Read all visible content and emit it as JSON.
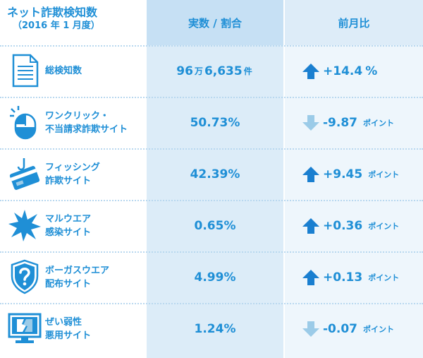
{
  "header": {
    "title": "ネット詐欺検知数",
    "subtitle": "（2016 年 1 月度）",
    "col_value": "実数 / 割合",
    "col_change": "前月比"
  },
  "colors": {
    "accent": "#1f8fd6",
    "arrow_up": "#1a7fd0",
    "arrow_down": "#9bcbe8"
  },
  "rows": [
    {
      "icon": "document-icon",
      "label_line1": "総検知数",
      "label_line2": "",
      "value_main": "96",
      "value_unit1": "万",
      "value_rest": "6,635",
      "value_unit2": "件",
      "direction": "up",
      "change": "+14.4",
      "change_unit": "%"
    },
    {
      "icon": "mouse-click-icon",
      "label_line1": "ワンクリック・",
      "label_line2": "不当請求詐欺サイト",
      "value": "50.73%",
      "direction": "down",
      "change": "-9.87",
      "change_unit": "ポイント"
    },
    {
      "icon": "credit-card-hook-icon",
      "label_line1": "フィッシング",
      "label_line2": "詐欺サイト",
      "value": "42.39%",
      "direction": "up",
      "change": "+9.45",
      "change_unit": "ポイント"
    },
    {
      "icon": "malware-burst-icon",
      "label_line1": "マルウエア",
      "label_line2": "感染サイト",
      "value": "0.65%",
      "direction": "up",
      "change": "+0.36",
      "change_unit": "ポイント"
    },
    {
      "icon": "question-shield-icon",
      "label_line1": "ボーガスウエア",
      "label_line2": "配布サイト",
      "value": "4.99%",
      "direction": "up",
      "change": "+0.13",
      "change_unit": "ポイント"
    },
    {
      "icon": "broken-monitor-icon",
      "label_line1": "ぜい弱性",
      "label_line2": "悪用サイト",
      "value": "1.24%",
      "direction": "down",
      "change": "-0.07",
      "change_unit": "ポイント"
    }
  ]
}
